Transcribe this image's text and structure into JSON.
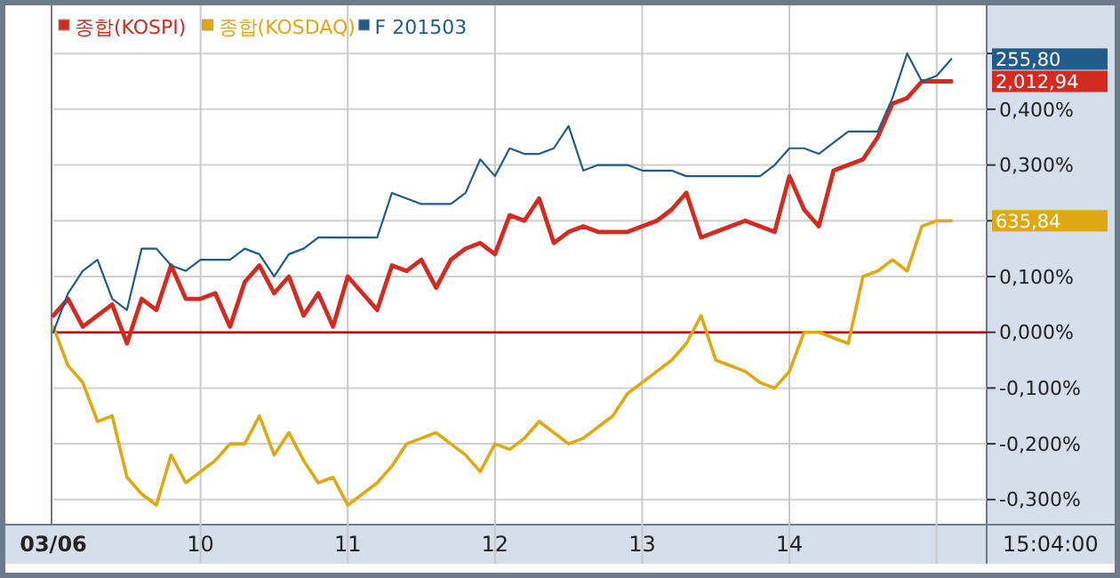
{
  "chart_data": {
    "type": "line",
    "categories": [
      "03/06",
      null,
      null,
      null,
      null,
      null,
      null,
      null,
      null,
      null,
      "10",
      null,
      null,
      null,
      null,
      null,
      null,
      null,
      null,
      null,
      "11",
      null,
      null,
      null,
      null,
      null,
      null,
      null,
      null,
      null,
      "12",
      null,
      null,
      null,
      null,
      null,
      null,
      null,
      null,
      null,
      "13",
      null,
      null,
      null,
      null,
      null,
      null,
      null,
      null,
      null,
      "14",
      null,
      null,
      null,
      null,
      null,
      null,
      null,
      null,
      null,
      null,
      null,
      null,
      null
    ],
    "ylim": [
      -0.345,
      0.58
    ],
    "yticks": [
      {
        "value": 0.5,
        "label": null
      },
      {
        "value": 0.4,
        "label": "0,400%"
      },
      {
        "value": 0.3,
        "label": "0,300%"
      },
      {
        "value": 0.2,
        "label": null
      },
      {
        "value": 0.1,
        "label": "0,100%"
      },
      {
        "value": 0,
        "label": "0,000%"
      },
      {
        "value": -0.1,
        "label": "-0,100%"
      },
      {
        "value": -0.2,
        "label": "-0,200%"
      },
      {
        "value": -0.3,
        "label": "-0,300%"
      }
    ],
    "grid": true,
    "legend": "top left",
    "marker": "none",
    "ref_lines": [
      {
        "axis": "y",
        "value": 0,
        "color": "#cc0000"
      }
    ],
    "series": [
      {
        "name": "종합(KOSPI)",
        "color": "#d42a20",
        "values": [
          0.03,
          0.06,
          0.01,
          0.03,
          0.05,
          -0.02,
          0.06,
          0.04,
          0.12,
          0.06,
          0.06,
          0.07,
          0.01,
          0.09,
          0.12,
          0.07,
          0.1,
          0.03,
          0.07,
          0.01,
          0.1,
          0.07,
          0.04,
          0.12,
          0.11,
          0.13,
          0.08,
          0.13,
          0.15,
          0.16,
          0.14,
          0.21,
          0.2,
          0.24,
          0.16,
          0.18,
          0.19,
          0.18,
          0.18,
          0.18,
          0.19,
          0.2,
          0.22,
          0.25,
          0.17,
          0.18,
          0.19,
          0.2,
          0.19,
          0.18,
          0.28,
          0.22,
          0.19,
          0.29,
          0.3,
          0.31,
          0.35,
          0.41,
          0.42,
          0.45,
          0.45,
          0.45,
          null,
          null
        ]
      },
      {
        "name": "종합(KOSDAQ)",
        "color": "#e0a810",
        "values": [
          0.01,
          -0.06,
          -0.09,
          -0.16,
          -0.15,
          -0.26,
          -0.29,
          -0.31,
          -0.22,
          -0.27,
          -0.25,
          -0.23,
          -0.2,
          -0.2,
          -0.15,
          -0.22,
          -0.18,
          -0.23,
          -0.27,
          -0.26,
          -0.31,
          -0.29,
          -0.27,
          -0.24,
          -0.2,
          -0.19,
          -0.18,
          -0.2,
          -0.22,
          -0.25,
          -0.2,
          -0.21,
          -0.19,
          -0.16,
          -0.18,
          -0.2,
          -0.19,
          -0.17,
          -0.15,
          -0.11,
          -0.09,
          -0.07,
          -0.05,
          -0.02,
          0.03,
          -0.05,
          -0.06,
          -0.07,
          -0.09,
          -0.1,
          -0.07,
          0,
          0,
          -0.01,
          -0.02,
          0.1,
          0.11,
          0.13,
          0.11,
          0.19,
          0.2,
          0.2,
          null,
          null
        ]
      },
      {
        "name": "F 201503",
        "color": "#1f5c8c",
        "values": [
          0,
          0.07,
          0.11,
          0.13,
          0.06,
          0.04,
          0.15,
          0.15,
          0.12,
          0.11,
          0.13,
          0.13,
          0.13,
          0.15,
          0.14,
          0.1,
          0.14,
          0.15,
          0.17,
          0.17,
          0.17,
          0.17,
          0.17,
          0.25,
          0.24,
          0.23,
          0.23,
          0.23,
          0.25,
          0.31,
          0.28,
          0.33,
          0.32,
          0.32,
          0.33,
          0.37,
          0.29,
          0.3,
          0.3,
          0.3,
          0.29,
          0.29,
          0.29,
          0.28,
          0.28,
          0.28,
          0.28,
          0.28,
          0.28,
          0.3,
          0.33,
          0.33,
          0.32,
          0.34,
          0.36,
          0.36,
          0.36,
          0.42,
          0.5,
          0.45,
          0.46,
          0.49,
          null,
          null
        ]
      }
    ],
    "annotations": [
      "2,012,94",
      "635,84",
      "255,80",
      "15:04:00"
    ]
  }
}
